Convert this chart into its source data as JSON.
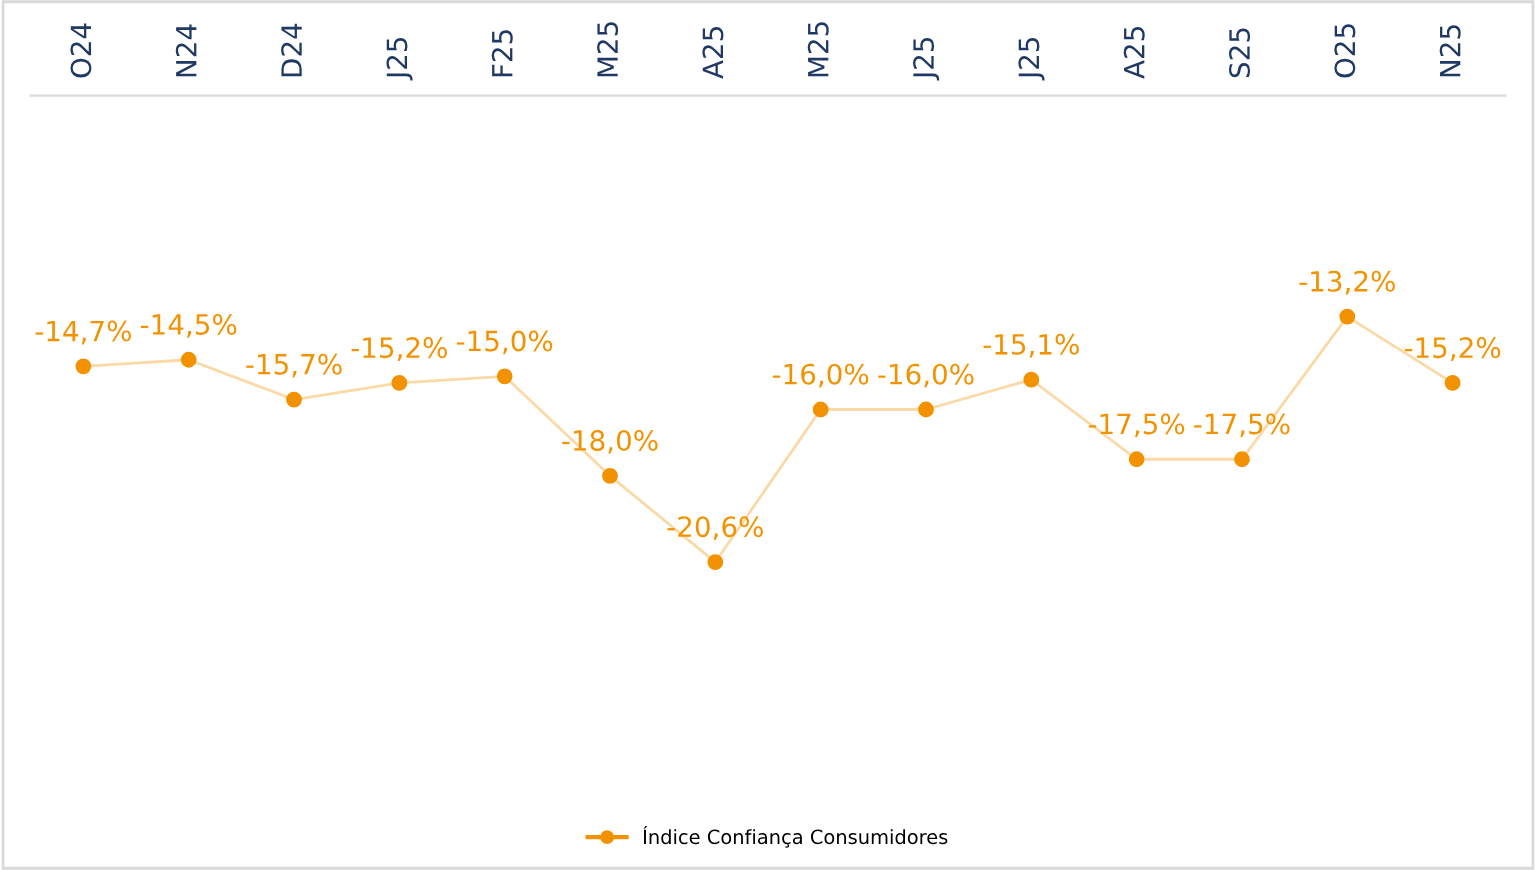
{
  "chart_data": {
    "type": "line",
    "categories": [
      "O24",
      "N24",
      "D24",
      "J25",
      "F25",
      "M25",
      "A25",
      "M25",
      "J25",
      "J25",
      "A25",
      "S25",
      "O25",
      "N25"
    ],
    "series": [
      {
        "name": "Índice Confiança Consumidores",
        "color": "#f39200",
        "values": [
          -14.7,
          -14.5,
          -15.7,
          -15.2,
          -15.0,
          -18.0,
          -20.6,
          -16.0,
          -16.0,
          -15.1,
          -17.5,
          -17.5,
          -13.2,
          -15.2
        ],
        "value_labels": [
          "-14,7%",
          "-14,5%",
          "-15,7%",
          "-15,2%",
          "-15,0%",
          "-18,0%",
          "-20,6%",
          "-16,0%",
          "-16,0%",
          "-15,1%",
          "-17,5%",
          "-17,5%",
          "-13,2%",
          "-15,2%"
        ]
      }
    ],
    "tick_labels": "x",
    "marker": "circle",
    "line_style": "solid",
    "legend": "bottom",
    "grid": false
  }
}
